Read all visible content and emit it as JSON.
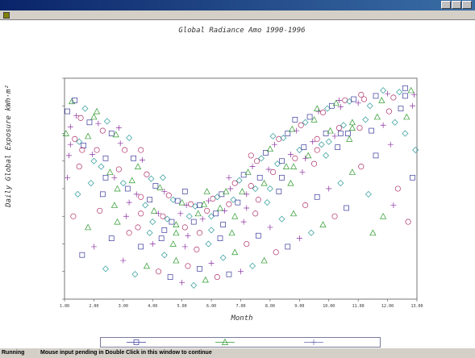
{
  "window": {
    "title": "",
    "min_icon": "minimize-icon",
    "max_icon": "maximize-icon",
    "close_icon": "close-icon"
  },
  "menu": {
    "items": []
  },
  "chart_data": {
    "type": "scatter",
    "title": "Global Radiance Amo 1990-1996",
    "xlabel": "Month",
    "ylabel": "Daily Global Exposure kWh·m²",
    "xlim": [
      1.0,
      13.0
    ],
    "ylim": [
      0,
      4
    ],
    "x_ticks": [
      "1.00",
      "2.00",
      "3.00",
      "4.00",
      "5.00",
      "6.00",
      "7.00",
      "8.00",
      "9.00",
      "10.00",
      "11.00",
      "12.00",
      "13.00"
    ],
    "x_tick_values": [
      1,
      2,
      3,
      4,
      5,
      6,
      7,
      8,
      9,
      10,
      11,
      12,
      13
    ],
    "y_ticks": [],
    "grid": false,
    "legend_position": "bottom",
    "series": [
      {
        "color": "#3a3a9c",
        "marker": "square"
      },
      {
        "color": "#2e9a2e",
        "marker": "triangle"
      },
      {
        "color": "#8a2ea0",
        "marker": "plus"
      },
      {
        "color": "#b0306a",
        "marker": "circle"
      },
      {
        "color": "#2e9a9a",
        "marker": "diamond"
      }
    ],
    "points": [
      [
        1.1,
        3.4
      ],
      [
        1.25,
        3.58
      ],
      [
        1.4,
        3.32
      ],
      [
        1.55,
        3.28
      ],
      [
        1.7,
        3.45
      ],
      [
        1.85,
        3.2
      ],
      [
        2.0,
        3.3
      ],
      [
        2.15,
        3.18
      ],
      [
        2.3,
        3.05
      ],
      [
        2.45,
        3.22
      ],
      [
        2.6,
        3.0
      ],
      [
        2.75,
        2.98
      ],
      [
        2.9,
        2.82
      ],
      [
        3.05,
        2.7
      ],
      [
        3.2,
        2.92
      ],
      [
        3.35,
        2.55
      ],
      [
        3.5,
        2.4
      ],
      [
        3.65,
        2.52
      ],
      [
        3.8,
        2.26
      ],
      [
        3.95,
        2.18
      ],
      [
        4.1,
        2.05
      ],
      [
        4.25,
        2.02
      ],
      [
        4.4,
        1.95
      ],
      [
        4.55,
        1.88
      ],
      [
        4.7,
        1.8
      ],
      [
        4.85,
        1.78
      ],
      [
        5.0,
        1.75
      ],
      [
        5.15,
        1.7
      ],
      [
        5.3,
        1.72
      ],
      [
        5.45,
        1.68
      ],
      [
        5.6,
        1.7
      ],
      [
        5.75,
        1.72
      ],
      [
        5.9,
        1.78
      ],
      [
        6.05,
        1.82
      ],
      [
        6.2,
        1.85
      ],
      [
        6.35,
        1.9
      ],
      [
        6.5,
        1.95
      ],
      [
        6.65,
        2.0
      ],
      [
        6.8,
        2.1
      ],
      [
        6.95,
        2.15
      ],
      [
        7.1,
        2.25
      ],
      [
        7.25,
        2.3
      ],
      [
        7.4,
        2.4
      ],
      [
        7.55,
        2.5
      ],
      [
        7.7,
        2.55
      ],
      [
        7.85,
        2.65
      ],
      [
        8.0,
        2.72
      ],
      [
        8.15,
        2.8
      ],
      [
        8.3,
        2.9
      ],
      [
        8.45,
        2.92
      ],
      [
        8.6,
        3.0
      ],
      [
        8.75,
        3.08
      ],
      [
        8.9,
        3.05
      ],
      [
        9.05,
        3.15
      ],
      [
        9.2,
        3.2
      ],
      [
        9.35,
        3.3
      ],
      [
        9.5,
        3.25
      ],
      [
        9.65,
        3.4
      ],
      [
        9.8,
        3.38
      ],
      [
        9.95,
        3.45
      ],
      [
        10.1,
        3.5
      ],
      [
        10.25,
        3.55
      ],
      [
        10.4,
        3.48
      ],
      [
        10.55,
        3.6
      ],
      [
        10.7,
        3.58
      ],
      [
        10.85,
        3.62
      ],
      [
        1.05,
        3.0
      ],
      [
        1.2,
        3.12
      ],
      [
        1.35,
        2.9
      ],
      [
        1.5,
        2.85
      ],
      [
        1.65,
        2.78
      ],
      [
        1.8,
        2.95
      ],
      [
        1.95,
        2.62
      ],
      [
        2.1,
        2.7
      ],
      [
        2.25,
        2.4
      ],
      [
        2.4,
        2.55
      ],
      [
        2.55,
        2.3
      ],
      [
        2.7,
        2.2
      ],
      [
        2.85,
        2.35
      ],
      [
        3.0,
        2.1
      ],
      [
        3.15,
        2.0
      ],
      [
        3.3,
        2.15
      ],
      [
        3.45,
        1.9
      ],
      [
        3.6,
        1.85
      ],
      [
        3.75,
        1.7
      ],
      [
        3.9,
        1.8
      ],
      [
        4.05,
        1.6
      ],
      [
        4.2,
        1.55
      ],
      [
        4.35,
        1.5
      ],
      [
        4.5,
        1.45
      ],
      [
        4.65,
        1.4
      ],
      [
        4.8,
        1.35
      ],
      [
        4.95,
        1.55
      ],
      [
        5.1,
        1.3
      ],
      [
        5.25,
        1.5
      ],
      [
        5.4,
        1.4
      ],
      [
        5.55,
        1.55
      ],
      [
        5.7,
        1.45
      ],
      [
        5.85,
        1.6
      ],
      [
        6.0,
        1.5
      ],
      [
        6.15,
        1.55
      ],
      [
        6.3,
        1.65
      ],
      [
        6.45,
        1.6
      ],
      [
        6.6,
        1.72
      ],
      [
        6.75,
        1.8
      ],
      [
        6.9,
        1.75
      ],
      [
        7.05,
        1.95
      ],
      [
        7.2,
        1.9
      ],
      [
        7.35,
        2.05
      ],
      [
        7.5,
        2.0
      ],
      [
        7.65,
        2.2
      ],
      [
        7.8,
        2.1
      ],
      [
        7.95,
        2.35
      ],
      [
        8.1,
        2.3
      ],
      [
        8.25,
        2.45
      ],
      [
        8.4,
        2.5
      ],
      [
        8.55,
        2.4
      ],
      [
        8.7,
        2.62
      ],
      [
        8.85,
        2.55
      ],
      [
        9.0,
        2.7
      ],
      [
        9.15,
        2.75
      ],
      [
        9.3,
        2.6
      ],
      [
        9.45,
        2.85
      ],
      [
        9.6,
        2.9
      ],
      [
        9.75,
        2.8
      ],
      [
        9.9,
        3.0
      ],
      [
        10.05,
        3.05
      ],
      [
        10.2,
        2.95
      ],
      [
        10.35,
        3.1
      ],
      [
        10.5,
        3.15
      ],
      [
        10.65,
        3.0
      ],
      [
        10.8,
        3.2
      ],
      [
        1.1,
        2.2
      ],
      [
        1.3,
        1.5
      ],
      [
        1.45,
        1.9
      ],
      [
        1.6,
        0.8
      ],
      [
        1.8,
        1.3
      ],
      [
        2.0,
        0.95
      ],
      [
        2.2,
        1.6
      ],
      [
        2.4,
        0.55
      ],
      [
        2.6,
        1.1
      ],
      [
        2.8,
        1.4
      ],
      [
        3.0,
        0.7
      ],
      [
        3.2,
        1.2
      ],
      [
        3.4,
        0.45
      ],
      [
        3.6,
        0.95
      ],
      [
        3.8,
        0.6
      ],
      [
        4.0,
        1.0
      ],
      [
        4.2,
        0.5
      ],
      [
        4.4,
        0.8
      ],
      [
        4.6,
        0.4
      ],
      [
        4.8,
        0.7
      ],
      [
        5.0,
        0.3
      ],
      [
        5.2,
        0.6
      ],
      [
        5.4,
        0.25
      ],
      [
        5.6,
        0.55
      ],
      [
        5.8,
        0.35
      ],
      [
        6.0,
        0.65
      ],
      [
        6.2,
        0.4
      ],
      [
        6.4,
        0.75
      ],
      [
        6.6,
        0.45
      ],
      [
        6.8,
        0.85
      ],
      [
        7.0,
        0.5
      ],
      [
        7.2,
        1.0
      ],
      [
        7.4,
        0.6
      ],
      [
        7.6,
        1.15
      ],
      [
        7.8,
        0.7
      ],
      [
        8.0,
        1.3
      ],
      [
        8.2,
        0.85
      ],
      [
        8.4,
        1.45
      ],
      [
        8.6,
        0.95
      ],
      [
        8.8,
        1.55
      ],
      [
        9.0,
        1.1
      ],
      [
        9.2,
        1.7
      ],
      [
        9.4,
        1.2
      ],
      [
        9.6,
        1.85
      ],
      [
        9.8,
        1.35
      ],
      [
        10.0,
        2.0
      ],
      [
        10.2,
        1.5
      ],
      [
        10.4,
        2.1
      ],
      [
        10.6,
        1.65
      ],
      [
        10.8,
        2.3
      ],
      [
        1.15,
        2.6
      ],
      [
        1.5,
        2.4
      ],
      [
        1.9,
        2.1
      ],
      [
        2.3,
        1.9
      ],
      [
        2.7,
        1.7
      ],
      [
        3.1,
        1.5
      ],
      [
        3.5,
        1.3
      ],
      [
        3.9,
        1.2
      ],
      [
        4.3,
        1.1
      ],
      [
        4.7,
        1.0
      ],
      [
        5.1,
        0.95
      ],
      [
        5.5,
        0.9
      ],
      [
        5.9,
        1.0
      ],
      [
        6.3,
        1.1
      ],
      [
        6.7,
        1.2
      ],
      [
        7.1,
        1.4
      ],
      [
        7.5,
        1.55
      ],
      [
        7.9,
        1.75
      ],
      [
        8.3,
        1.95
      ],
      [
        8.7,
        2.1
      ],
      [
        9.1,
        2.3
      ],
      [
        9.5,
        2.45
      ],
      [
        9.9,
        2.6
      ],
      [
        10.3,
        2.75
      ],
      [
        10.7,
        2.9
      ],
      [
        1.2,
        2.8
      ],
      [
        1.6,
        2.7
      ],
      [
        2.0,
        2.5
      ],
      [
        2.4,
        2.2
      ],
      [
        2.8,
        2.0
      ],
      [
        3.2,
        1.75
      ],
      [
        3.6,
        1.55
      ],
      [
        4.0,
        1.4
      ],
      [
        4.4,
        1.25
      ],
      [
        4.8,
        1.2
      ],
      [
        5.2,
        1.15
      ],
      [
        5.6,
        1.2
      ],
      [
        6.0,
        1.25
      ],
      [
        6.4,
        1.35
      ],
      [
        6.8,
        1.5
      ],
      [
        7.2,
        1.65
      ],
      [
        7.6,
        1.8
      ],
      [
        8.0,
        2.0
      ],
      [
        8.4,
        2.2
      ],
      [
        8.8,
        2.4
      ],
      [
        9.2,
        2.55
      ],
      [
        9.6,
        2.7
      ],
      [
        10.0,
        2.85
      ],
      [
        10.4,
        3.0
      ],
      [
        10.8,
        3.1
      ],
      [
        11.0,
        3.55
      ],
      [
        11.2,
        3.62
      ],
      [
        11.4,
        3.5
      ],
      [
        11.6,
        3.68
      ],
      [
        11.8,
        3.6
      ],
      [
        12.0,
        3.72
      ],
      [
        12.2,
        3.65
      ],
      [
        12.4,
        3.75
      ],
      [
        12.6,
        3.68
      ],
      [
        12.8,
        3.78
      ],
      [
        12.9,
        3.7
      ],
      [
        11.05,
        3.1
      ],
      [
        11.25,
        3.25
      ],
      [
        11.45,
        3.05
      ],
      [
        11.65,
        3.3
      ],
      [
        11.85,
        3.15
      ],
      [
        12.05,
        3.4
      ],
      [
        12.25,
        3.2
      ],
      [
        12.45,
        3.45
      ],
      [
        12.65,
        3.3
      ],
      [
        12.85,
        3.5
      ],
      [
        11.1,
        2.4
      ],
      [
        11.35,
        1.9
      ],
      [
        11.6,
        2.6
      ],
      [
        11.85,
        1.5
      ],
      [
        12.1,
        2.8
      ],
      [
        12.35,
        2.0
      ],
      [
        12.6,
        3.0
      ],
      [
        12.85,
        2.2
      ],
      [
        11.5,
        1.2
      ],
      [
        12.2,
        1.7
      ],
      [
        12.7,
        1.4
      ],
      [
        12.95,
        2.7
      ],
      [
        1.35,
        3.6
      ],
      [
        2.1,
        3.4
      ],
      [
        2.85,
        3.1
      ],
      [
        3.6,
        2.7
      ],
      [
        4.35,
        2.2
      ],
      [
        5.1,
        1.95
      ],
      [
        5.85,
        1.95
      ],
      [
        6.6,
        2.2
      ],
      [
        7.35,
        2.6
      ],
      [
        8.1,
        2.95
      ],
      [
        8.85,
        3.25
      ],
      [
        9.6,
        3.45
      ],
      [
        10.35,
        3.6
      ],
      [
        11.1,
        3.7
      ],
      [
        11.85,
        3.78
      ],
      [
        12.6,
        3.82
      ]
    ]
  },
  "legend": {
    "items": [
      {
        "label": "",
        "color": "#3a3a9c",
        "marker": "square"
      },
      {
        "label": "",
        "color": "#2e9a2e",
        "marker": "triangle"
      },
      {
        "label": "",
        "color": "#6a6ab0",
        "marker": "plus"
      }
    ]
  },
  "status": {
    "state": "Running",
    "message": "Mouse input pending in Double Click in this window to continue"
  }
}
